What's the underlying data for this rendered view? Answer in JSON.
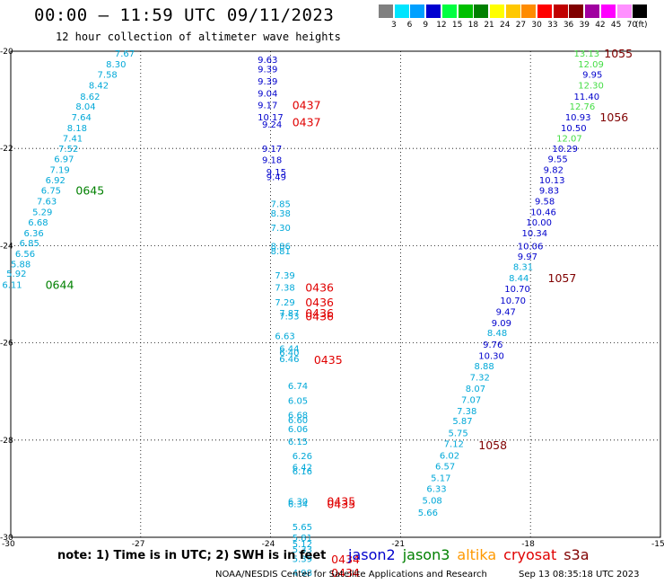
{
  "title": "00:00 – 11:59 UTC 09/11/2023",
  "subtitle": "12 hour collection of altimeter wave heights",
  "colorbar": {
    "labels": [
      "3",
      "6",
      "9",
      "12",
      "15",
      "18",
      "21",
      "24",
      "27",
      "30",
      "33",
      "36",
      "39",
      "42",
      "45",
      "70"
    ],
    "colors": [
      "#808080",
      "#00e5ff",
      "#00a0ff",
      "#0000d0",
      "#00ff40",
      "#00c000",
      "#008000",
      "#ffff00",
      "#ffc800",
      "#ff8c00",
      "#ff0000",
      "#c00000",
      "#800000",
      "#a000a0",
      "#ff00ff",
      "#ff90ff",
      "#000000"
    ],
    "unit": "(ft)"
  },
  "axes": {
    "x_ticks": [
      "-30",
      "-27",
      "-24",
      "-21",
      "-18",
      "-15"
    ],
    "y_ticks": [
      "-20",
      "-22",
      "-24",
      "-26",
      "-28",
      "-30"
    ],
    "x_range": [
      -30,
      -15
    ],
    "y_range": [
      -20,
      -30
    ]
  },
  "chart_data": {
    "type": "scatter",
    "x_range": [
      -30,
      -15
    ],
    "y_range": [
      -20,
      -30
    ],
    "obs": [
      {
        "x": -27.6,
        "y": -20.04,
        "t": "7.67",
        "c": "c"
      },
      {
        "x": -27.8,
        "y": -20.26,
        "t": "8.30",
        "c": "c"
      },
      {
        "x": -28.0,
        "y": -20.47,
        "t": "7.58",
        "c": "c"
      },
      {
        "x": -28.2,
        "y": -20.69,
        "t": "8.42",
        "c": "c"
      },
      {
        "x": -28.4,
        "y": -20.92,
        "t": "8.62",
        "c": "c"
      },
      {
        "x": -28.5,
        "y": -21.13,
        "t": "8.04",
        "c": "c"
      },
      {
        "x": -28.6,
        "y": -21.35,
        "t": "7.64",
        "c": "c"
      },
      {
        "x": -28.7,
        "y": -21.57,
        "t": "8.18",
        "c": "c"
      },
      {
        "x": -28.8,
        "y": -21.78,
        "t": "7.41",
        "c": "c"
      },
      {
        "x": -28.9,
        "y": -22.0,
        "t": "7.52",
        "c": "c"
      },
      {
        "x": -29.0,
        "y": -22.21,
        "t": "6.97",
        "c": "c"
      },
      {
        "x": -29.1,
        "y": -22.43,
        "t": "7.19",
        "c": "c"
      },
      {
        "x": -29.2,
        "y": -22.64,
        "t": "6.92",
        "c": "c"
      },
      {
        "x": -29.3,
        "y": -22.86,
        "t": "6.75",
        "c": "c"
      },
      {
        "x": -29.4,
        "y": -23.08,
        "t": "7.63",
        "c": "c"
      },
      {
        "x": -29.5,
        "y": -23.3,
        "t": "5.29",
        "c": "c"
      },
      {
        "x": -29.6,
        "y": -23.51,
        "t": "6.68",
        "c": "c"
      },
      {
        "x": -29.7,
        "y": -23.73,
        "t": "6.36",
        "c": "c"
      },
      {
        "x": -29.8,
        "y": -23.94,
        "t": "6.85",
        "c": "c"
      },
      {
        "x": -29.9,
        "y": -24.16,
        "t": "6.56",
        "c": "c"
      },
      {
        "x": -30.0,
        "y": -24.37,
        "t": "5.88",
        "c": "c"
      },
      {
        "x": -30.1,
        "y": -24.57,
        "t": "5.92",
        "c": "c"
      },
      {
        "x": -30.2,
        "y": -24.8,
        "t": "6.11",
        "c": "c"
      },
      {
        "x": -24.3,
        "y": -20.17,
        "t": "9.63",
        "c": "b"
      },
      {
        "x": -24.3,
        "y": -20.36,
        "t": "9.39",
        "c": "b"
      },
      {
        "x": -24.3,
        "y": -20.61,
        "t": "9.39",
        "c": "b"
      },
      {
        "x": -24.3,
        "y": -20.86,
        "t": "9.04",
        "c": "b"
      },
      {
        "x": -24.3,
        "y": -21.1,
        "t": "9.17",
        "c": "b"
      },
      {
        "x": -24.3,
        "y": -21.35,
        "t": "10.17",
        "c": "b"
      },
      {
        "x": -24.2,
        "y": -21.5,
        "t": "9.24",
        "c": "b"
      },
      {
        "x": -24.2,
        "y": -22.0,
        "t": "9.17",
        "c": "b"
      },
      {
        "x": -24.2,
        "y": -22.23,
        "t": "9.18",
        "c": "b"
      },
      {
        "x": -24.1,
        "y": -22.48,
        "t": "9.15",
        "c": "b"
      },
      {
        "x": -24.1,
        "y": -22.58,
        "t": "9.49",
        "c": "b"
      },
      {
        "x": -24.0,
        "y": -23.13,
        "t": "7.85",
        "c": "c"
      },
      {
        "x": -24.0,
        "y": -23.33,
        "t": "8.38",
        "c": "c"
      },
      {
        "x": -24.0,
        "y": -23.62,
        "t": "7.30",
        "c": "c"
      },
      {
        "x": -24.0,
        "y": -24.0,
        "t": "8.86",
        "c": "c"
      },
      {
        "x": -24.0,
        "y": -24.1,
        "t": "8.81",
        "c": "c"
      },
      {
        "x": -23.9,
        "y": -24.6,
        "t": "7.39",
        "c": "c"
      },
      {
        "x": -23.9,
        "y": -24.85,
        "t": "7.38",
        "c": "c"
      },
      {
        "x": -23.9,
        "y": -25.16,
        "t": "7.29",
        "c": "c"
      },
      {
        "x": -23.8,
        "y": -25.38,
        "t": "7.87",
        "c": "c"
      },
      {
        "x": -23.8,
        "y": -25.44,
        "t": "7.53",
        "c": "c"
      },
      {
        "x": -23.9,
        "y": -25.85,
        "t": "6.63",
        "c": "c"
      },
      {
        "x": -23.8,
        "y": -26.11,
        "t": "6.44",
        "c": "c"
      },
      {
        "x": -23.8,
        "y": -26.19,
        "t": "6.40",
        "c": "c"
      },
      {
        "x": -23.8,
        "y": -26.32,
        "t": "6.46",
        "c": "c"
      },
      {
        "x": -23.6,
        "y": -26.88,
        "t": "6.74",
        "c": "c"
      },
      {
        "x": -23.6,
        "y": -27.18,
        "t": "6.05",
        "c": "c"
      },
      {
        "x": -23.6,
        "y": -27.48,
        "t": "6.68",
        "c": "c"
      },
      {
        "x": -23.6,
        "y": -27.58,
        "t": "6.60",
        "c": "c"
      },
      {
        "x": -23.6,
        "y": -27.76,
        "t": "6.06",
        "c": "c"
      },
      {
        "x": -23.6,
        "y": -28.02,
        "t": "6.15",
        "c": "c"
      },
      {
        "x": -23.5,
        "y": -28.32,
        "t": "6.26",
        "c": "c"
      },
      {
        "x": -23.5,
        "y": -28.55,
        "t": "6.42",
        "c": "c"
      },
      {
        "x": -23.5,
        "y": -28.63,
        "t": "6.16",
        "c": "c"
      },
      {
        "x": -23.6,
        "y": -29.25,
        "t": "6.30",
        "c": "c"
      },
      {
        "x": -23.6,
        "y": -29.31,
        "t": "6.34",
        "c": "c"
      },
      {
        "x": -23.5,
        "y": -29.78,
        "t": "5.65",
        "c": "c"
      },
      {
        "x": -23.5,
        "y": -30.0,
        "t": "5.81",
        "c": "c"
      },
      {
        "x": -23.5,
        "y": -30.13,
        "t": "5.12",
        "c": "c"
      },
      {
        "x": -23.5,
        "y": -30.24,
        "t": "5.33",
        "c": "c"
      },
      {
        "x": -23.5,
        "y": -30.43,
        "t": "5.39",
        "c": "c"
      },
      {
        "x": -23.5,
        "y": -30.72,
        "t": "4.98",
        "c": "c"
      },
      {
        "x": -17.0,
        "y": -20.04,
        "t": "13.13",
        "c": "g"
      },
      {
        "x": -16.9,
        "y": -20.26,
        "t": "12.09",
        "c": "g"
      },
      {
        "x": -16.8,
        "y": -20.47,
        "t": "9.95",
        "c": "b"
      },
      {
        "x": -16.9,
        "y": -20.69,
        "t": "12.30",
        "c": "g"
      },
      {
        "x": -17.0,
        "y": -20.92,
        "t": "11.40",
        "c": "b"
      },
      {
        "x": -17.1,
        "y": -21.13,
        "t": "12.76",
        "c": "g"
      },
      {
        "x": -17.2,
        "y": -21.35,
        "t": "10.93",
        "c": "b"
      },
      {
        "x": -17.3,
        "y": -21.57,
        "t": "10.50",
        "c": "b"
      },
      {
        "x": -17.4,
        "y": -21.78,
        "t": "12.07",
        "c": "g"
      },
      {
        "x": -17.5,
        "y": -22.0,
        "t": "10.29",
        "c": "b"
      },
      {
        "x": -17.6,
        "y": -22.21,
        "t": "9.55",
        "c": "b"
      },
      {
        "x": -17.7,
        "y": -22.43,
        "t": "9.82",
        "c": "b"
      },
      {
        "x": -17.8,
        "y": -22.64,
        "t": "10.13",
        "c": "b"
      },
      {
        "x": -17.8,
        "y": -22.86,
        "t": "9.83",
        "c": "b"
      },
      {
        "x": -17.9,
        "y": -23.08,
        "t": "9.58",
        "c": "b"
      },
      {
        "x": -18.0,
        "y": -23.3,
        "t": "10.46",
        "c": "b"
      },
      {
        "x": -18.1,
        "y": -23.51,
        "t": "10.00",
        "c": "b"
      },
      {
        "x": -18.2,
        "y": -23.73,
        "t": "10.34",
        "c": "b"
      },
      {
        "x": -18.3,
        "y": -24.0,
        "t": "10.06",
        "c": "b"
      },
      {
        "x": -18.3,
        "y": -24.21,
        "t": "9.97",
        "c": "b"
      },
      {
        "x": -18.4,
        "y": -24.43,
        "t": "8.31",
        "c": "c"
      },
      {
        "x": -18.5,
        "y": -24.66,
        "t": "8.44",
        "c": "c"
      },
      {
        "x": -18.6,
        "y": -24.88,
        "t": "10.70",
        "c": "b"
      },
      {
        "x": -18.7,
        "y": -25.12,
        "t": "10.70",
        "c": "b"
      },
      {
        "x": -18.8,
        "y": -25.35,
        "t": "9.47",
        "c": "b"
      },
      {
        "x": -18.9,
        "y": -25.58,
        "t": "9.09",
        "c": "b"
      },
      {
        "x": -19.0,
        "y": -25.79,
        "t": "8.48",
        "c": "c"
      },
      {
        "x": -19.1,
        "y": -26.03,
        "t": "9.76",
        "c": "b"
      },
      {
        "x": -19.2,
        "y": -26.26,
        "t": "10.30",
        "c": "b"
      },
      {
        "x": -19.3,
        "y": -26.47,
        "t": "8.88",
        "c": "c"
      },
      {
        "x": -19.4,
        "y": -26.7,
        "t": "7.32",
        "c": "c"
      },
      {
        "x": -19.5,
        "y": -26.93,
        "t": "8.07",
        "c": "c"
      },
      {
        "x": -19.6,
        "y": -27.16,
        "t": "7.07",
        "c": "c"
      },
      {
        "x": -19.7,
        "y": -27.39,
        "t": "7.38",
        "c": "c"
      },
      {
        "x": -19.8,
        "y": -27.6,
        "t": "5.87",
        "c": "c"
      },
      {
        "x": -19.9,
        "y": -27.85,
        "t": "5.75",
        "c": "c"
      },
      {
        "x": -20.0,
        "y": -28.07,
        "t": "7.12",
        "c": "c"
      },
      {
        "x": -20.1,
        "y": -28.31,
        "t": "6.02",
        "c": "c"
      },
      {
        "x": -20.2,
        "y": -28.53,
        "t": "6.57",
        "c": "c"
      },
      {
        "x": -20.3,
        "y": -28.77,
        "t": "5.17",
        "c": "c"
      },
      {
        "x": -20.4,
        "y": -28.99,
        "t": "6.33",
        "c": "c"
      },
      {
        "x": -20.5,
        "y": -29.23,
        "t": "5.08",
        "c": "c"
      },
      {
        "x": -20.6,
        "y": -29.48,
        "t": "5.66",
        "c": "c"
      }
    ],
    "time_labels": [
      {
        "x": -28.5,
        "y": -22.86,
        "t": "0645",
        "c": "d"
      },
      {
        "x": -29.2,
        "y": -24.8,
        "t": "0644",
        "c": "d"
      },
      {
        "x": -23.5,
        "y": -21.1,
        "t": "0437",
        "c": "r"
      },
      {
        "x": -23.5,
        "y": -21.45,
        "t": "0437",
        "c": "r"
      },
      {
        "x": -23.2,
        "y": -24.85,
        "t": "0436",
        "c": "r"
      },
      {
        "x": -23.2,
        "y": -25.16,
        "t": "0436",
        "c": "r"
      },
      {
        "x": -23.2,
        "y": -25.38,
        "t": "0436",
        "c": "r"
      },
      {
        "x": -23.2,
        "y": -25.44,
        "t": "0436",
        "c": "r"
      },
      {
        "x": -23.0,
        "y": -26.34,
        "t": "0435",
        "c": "r"
      },
      {
        "x": -22.7,
        "y": -29.25,
        "t": "0435",
        "c": "r"
      },
      {
        "x": -22.7,
        "y": -29.31,
        "t": "0435",
        "c": "r"
      },
      {
        "x": -22.6,
        "y": -30.44,
        "t": "0434",
        "c": "r"
      },
      {
        "x": -22.6,
        "y": -30.72,
        "t": "0434",
        "c": "r"
      },
      {
        "x": -16.3,
        "y": -20.04,
        "t": "1055",
        "c": "m"
      },
      {
        "x": -16.4,
        "y": -21.35,
        "t": "1056",
        "c": "m"
      },
      {
        "x": -17.6,
        "y": -24.66,
        "t": "1057",
        "c": "m"
      },
      {
        "x": -19.2,
        "y": -28.1,
        "t": "1058",
        "c": "m"
      }
    ]
  },
  "note": "note: 1) Time is in UTC; 2) SWH is in feet",
  "legend": [
    {
      "name": "jason2",
      "color": "#0000cc"
    },
    {
      "name": "jason3",
      "color": "#008000"
    },
    {
      "name": "altika",
      "color": "#ff9900"
    },
    {
      "name": "cryosat",
      "color": "#e00000"
    },
    {
      "name": "s3a",
      "color": "#800000"
    }
  ],
  "credit": "NOAA/NESDIS Center for Satellite Applications and Research",
  "timestamp": "Sep 13 08:35:18 UTC 2023",
  "colors": {
    "c": "#00a8d8",
    "b": "#0000cc",
    "g": "#44dd44",
    "d": "#008000",
    "r": "#e00000",
    "m": "#800000"
  }
}
